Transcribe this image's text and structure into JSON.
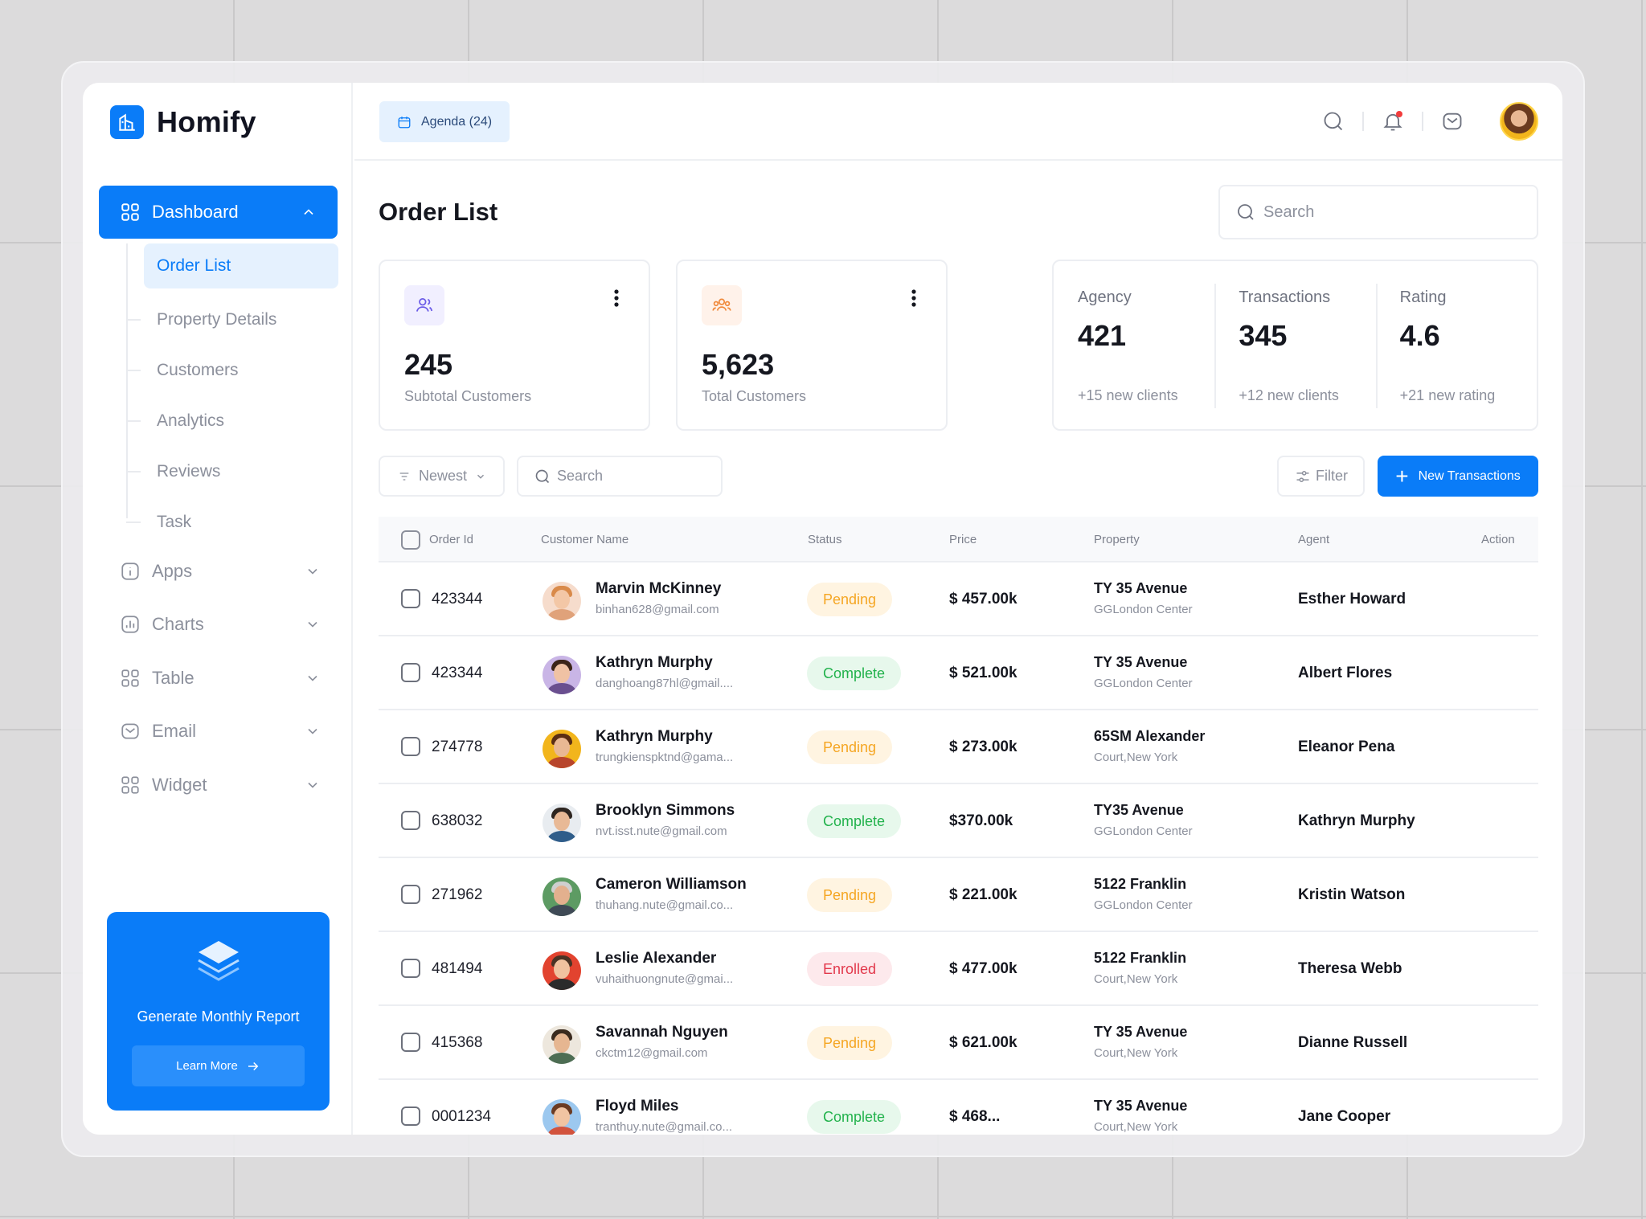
{
  "app": {
    "name": "Homify"
  },
  "sidebar": {
    "main_item": "Dashboard",
    "sub_items": [
      "Order List",
      "Property Details",
      "Customers",
      "Analytics",
      "Reviews",
      "Task"
    ],
    "groups": [
      "Apps",
      "Charts",
      "Table",
      "Email",
      "Widget"
    ],
    "report": {
      "title": "Generate Monthly Report",
      "button": "Learn More"
    }
  },
  "topbar": {
    "agenda": "Agenda (24)"
  },
  "page": {
    "title": "Order List",
    "search_placeholder": "Search"
  },
  "cards": [
    {
      "value": "245",
      "label": "Subtotal Customers",
      "icon": "users-icon",
      "color": "#6b5ce7"
    },
    {
      "value": "5,623",
      "label": "Total Customers",
      "icon": "group-icon",
      "color": "#f08a3c"
    }
  ],
  "metrics": [
    {
      "label": "Agency",
      "value": "421",
      "sub": "+15 new clients"
    },
    {
      "label": "Transactions",
      "value": "345",
      "sub": "+12 new clients"
    },
    {
      "label": "Rating",
      "value": "4.6",
      "sub": "+21 new rating"
    }
  ],
  "toolbar": {
    "sort": "Newest",
    "search_placeholder": "Search",
    "filter": "Filter",
    "new_button": "New Transactions"
  },
  "table": {
    "columns": [
      "Order Id",
      "Customer Name",
      "Status",
      "Price",
      "Property",
      "Agent",
      "Action"
    ],
    "rows": [
      {
        "id": "423344",
        "name": "Marvin McKinney",
        "email": "binhan628@gmail.com",
        "status": "Pending",
        "price": "$ 457.00k",
        "property": "TY 35 Avenue",
        "location": "GGLondon Center",
        "agent": "Esther Howard"
      },
      {
        "id": "423344",
        "name": "Kathryn Murphy",
        "email": "danghoang87hl@gmail....",
        "status": "Complete",
        "price": "$ 521.00k",
        "property": "TY 35 Avenue",
        "location": "GGLondon Center",
        "agent": "Albert Flores"
      },
      {
        "id": "274778",
        "name": "Kathryn Murphy",
        "email": "trungkienspktnd@gama...",
        "status": "Pending",
        "price": "$ 273.00k",
        "property": "65SM Alexander",
        "location": "Court,New York",
        "agent": "Eleanor Pena"
      },
      {
        "id": "638032",
        "name": "Brooklyn Simmons",
        "email": "nvt.isst.nute@gmail.com",
        "status": "Complete",
        "price": "$370.00k",
        "property": "TY35 Avenue",
        "location": "GGLondon Center",
        "agent": "Kathryn Murphy"
      },
      {
        "id": "271962",
        "name": "Cameron Williamson",
        "email": "thuhang.nute@gmail.co...",
        "status": "Pending",
        "price": "$ 221.00k",
        "property": "5122 Franklin",
        "location": "GGLondon Center",
        "agent": "Kristin Watson"
      },
      {
        "id": "481494",
        "name": "Leslie Alexander",
        "email": "vuhaithuongnute@gmai...",
        "status": "Enrolled",
        "price": "$ 477.00k",
        "property": "5122 Franklin",
        "location": "Court,New York",
        "agent": "Theresa Webb"
      },
      {
        "id": "415368",
        "name": "Savannah Nguyen",
        "email": "ckctm12@gmail.com",
        "status": "Pending",
        "price": "$ 621.00k",
        "property": "TY 35 Avenue",
        "location": "Court,New York",
        "agent": "Dianne Russell"
      },
      {
        "id": "0001234",
        "name": "Floyd Miles",
        "email": "tranthuy.nute@gmail.co...",
        "status": "Complete",
        "price": "$ 468...",
        "property": "TY 35 Avenue",
        "location": "Court,New York",
        "agent": "Jane Cooper"
      }
    ]
  }
}
